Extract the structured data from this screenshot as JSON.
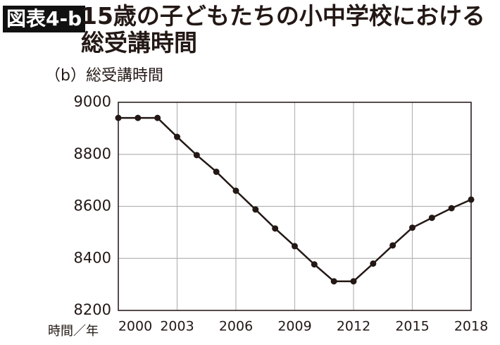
{
  "badge": "図表4-b",
  "chart_data": {
    "type": "line",
    "title": "15歳の子どもたちの小中学校における総受講時間",
    "subtitle": "（b）総受講時間",
    "x_label": "時間／年",
    "x": [
      2000,
      2001,
      2002,
      2003,
      2004,
      2005,
      2006,
      2007,
      2008,
      2009,
      2010,
      2011,
      2012,
      2013,
      2014,
      2015,
      2016,
      2017,
      2018
    ],
    "series": [
      {
        "color": "#231815",
        "values": [
          8940,
          8940,
          8940,
          8867,
          8797,
          8733,
          8660,
          8588,
          8515,
          8447,
          8377,
          8312,
          8312,
          8380,
          8450,
          8518,
          8556,
          8593,
          8626
        ]
      }
    ],
    "xlim": [
      2000,
      2018
    ],
    "xticks": [
      2000,
      2003,
      2006,
      2009,
      2012,
      2015,
      2018
    ],
    "ylim": [
      8200,
      9000
    ],
    "yticks": [
      8200,
      8400,
      8600,
      8800,
      9000
    ],
    "grid": true
  }
}
